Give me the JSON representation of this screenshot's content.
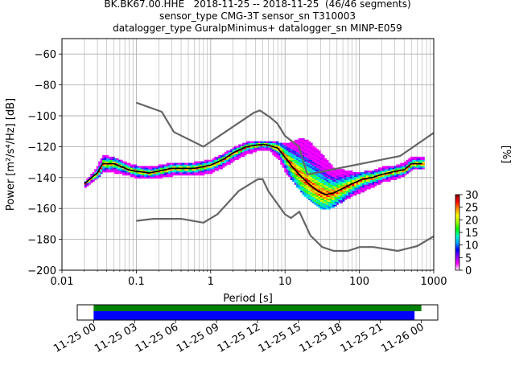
{
  "title_lines": [
    "BK.BK67.00.HHE   2018-11-25 -- 2018-11-25  (46/46 segments)",
    "sensor_type CMG-3T sensor_sn T310003",
    "datalogger_type GuralpMinimus+ datalogger_sn MINP-E059"
  ],
  "chart_data": [
    {
      "type": "heatmap",
      "xlabel": "Period [s]",
      "ylabel": "Power [m²/s⁴/Hz] [dB]",
      "xscale": "log",
      "xlim": [
        0.01,
        1000
      ],
      "ylim": [
        -200,
        -50
      ],
      "x_ticks": [
        0.01,
        0.1,
        1,
        10,
        100,
        1000
      ],
      "x_tick_labels": [
        "0.01",
        "0.1",
        "1",
        "10",
        "100",
        "1000"
      ],
      "y_ticks": [
        -200,
        -180,
        -160,
        -140,
        -120,
        -100,
        -80,
        -60
      ],
      "y_tick_labels": [
        "−200",
        "−180",
        "−160",
        "−140",
        "−120",
        "−100",
        "−80",
        "−60"
      ],
      "grid": true,
      "colorbar": {
        "label": "[%]",
        "range": [
          0,
          30
        ],
        "ticks": [
          0,
          5,
          10,
          15,
          20,
          25,
          30
        ],
        "tick_labels": [
          "0",
          "5",
          "10",
          "15",
          "20",
          "25",
          "30"
        ],
        "colormap": [
          "#ffffff",
          "#ff00ff",
          "#8800ff",
          "#0000ff",
          "#00aaff",
          "#00ffcc",
          "#00ff00",
          "#aaff00",
          "#ffff00",
          "#ff8800",
          "#ff0000",
          "#880000"
        ]
      },
      "series": [
        {
          "role": "NHNM",
          "color": "#666666",
          "x": [
            0.1,
            0.22,
            0.32,
            0.8,
            3.8,
            4.6,
            6.3,
            7.9,
            10,
            15.4,
            20,
            354.8,
            1000
          ],
          "y": [
            -91.5,
            -97.4,
            -110.5,
            -120,
            -98,
            -96.5,
            -101,
            -105,
            -113,
            -120,
            -138,
            -126,
            -111
          ]
        },
        {
          "role": "NLNM",
          "color": "#666666",
          "x": [
            0.1,
            0.17,
            0.4,
            0.8,
            1.24,
            2.4,
            4.3,
            5,
            6,
            10,
            12,
            15.6,
            21.9,
            31.6,
            45,
            70,
            101,
            154,
            328,
            600,
            1000
          ],
          "y": [
            -168,
            -166.7,
            -166.7,
            -169.2,
            -163.7,
            -148.6,
            -141.1,
            -141.1,
            -149,
            -163.8,
            -166.2,
            -162.1,
            -177.5,
            -185,
            -187.5,
            -187.5,
            -185,
            -185,
            -187.5,
            -184.4,
            -178
          ]
        },
        {
          "role": "mode",
          "color": "#000000",
          "x": [
            0.02,
            0.025,
            0.03,
            0.035,
            0.05,
            0.08,
            0.1,
            0.15,
            0.3,
            0.6,
            1,
            1.5,
            2,
            3,
            4,
            5,
            6,
            8,
            10,
            13,
            17,
            22,
            28,
            35,
            45,
            60,
            80,
            110,
            150,
            200,
            300,
            400,
            500,
            700
          ],
          "y": [
            -144,
            -140,
            -137,
            -131,
            -131,
            -135,
            -136,
            -137,
            -134,
            -134,
            -132,
            -128,
            -124,
            -120,
            -119,
            -118.5,
            -119,
            -121,
            -127,
            -134,
            -140,
            -145,
            -149,
            -151,
            -150,
            -147,
            -144,
            -141,
            -140,
            -138,
            -136,
            -135,
            -131,
            -131
          ]
        }
      ],
      "density_upper": [
        -143,
        -138,
        -132,
        -126,
        -128,
        -132,
        -133,
        -134,
        -131,
        -131,
        -129,
        -125,
        -121,
        -118,
        -117,
        -117,
        -117,
        -118,
        -119,
        -117,
        -115,
        -119,
        -124,
        -129,
        -135,
        -136,
        -137,
        -137,
        -136,
        -134,
        -133,
        -131,
        -127,
        -127
      ],
      "density_lower": [
        -146,
        -142,
        -139,
        -135,
        -136,
        -138,
        -140,
        -140,
        -138,
        -138,
        -136,
        -132,
        -128,
        -124,
        -122,
        -121,
        -122,
        -127,
        -136,
        -143,
        -150,
        -155,
        -159,
        -160,
        -158,
        -154,
        -151,
        -148,
        -145,
        -142,
        -140,
        -138,
        -134,
        -134
      ]
    },
    {
      "type": "bar",
      "role": "data-coverage",
      "x_tick_labels": [
        "11-25 00",
        "11-25 03",
        "11-25 06",
        "11-25 09",
        "11-25 12",
        "11-25 15",
        "11-25 18",
        "11-25 21",
        "11-26 00"
      ],
      "x_range_hours": [
        -1.2,
        25.2
      ],
      "bars": [
        {
          "role": "available",
          "color": "#008000",
          "start_hour": 0.0,
          "end_hour": 24.0
        },
        {
          "role": "used",
          "color": "#0000ff",
          "start_hour": 0.0,
          "end_hour": 23.5
        }
      ]
    }
  ]
}
